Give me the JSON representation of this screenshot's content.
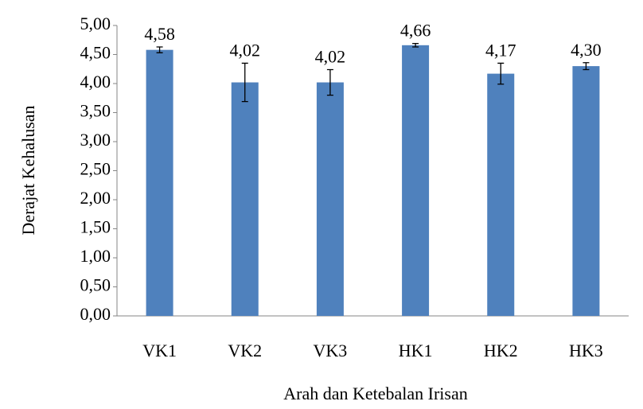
{
  "chart_data": {
    "type": "bar",
    "x_label": "Arah dan Ketebalan Irisan",
    "y_label": "Derajat Kehalusan",
    "categories": [
      "VK1",
      "VK2",
      "VK3",
      "HK1",
      "HK2",
      "HK3"
    ],
    "values": [
      4.58,
      4.02,
      4.02,
      4.66,
      4.17,
      4.3
    ],
    "value_labels": [
      "4,58",
      "4,02",
      "4,02",
      "4,66",
      "4,17",
      "4,30"
    ],
    "errors": [
      0.05,
      0.33,
      0.22,
      0.03,
      0.18,
      0.06
    ],
    "color": "#4f81bd",
    "ylim": [
      0,
      5
    ],
    "yticks": [
      {
        "value": 0,
        "label": "0,00"
      },
      {
        "value": 0.5,
        "label": "0,50"
      },
      {
        "value": 1,
        "label": "1,00"
      },
      {
        "value": 1.5,
        "label": "1,50"
      },
      {
        "value": 2,
        "label": "2,00"
      },
      {
        "value": 2.5,
        "label": "2,50"
      },
      {
        "value": 3,
        "label": "3,00"
      },
      {
        "value": 3.5,
        "label": "3,50"
      },
      {
        "value": 4,
        "label": "4,00"
      },
      {
        "value": 4.5,
        "label": "4,50"
      },
      {
        "value": 5,
        "label": "5,00"
      }
    ],
    "grid": false
  }
}
